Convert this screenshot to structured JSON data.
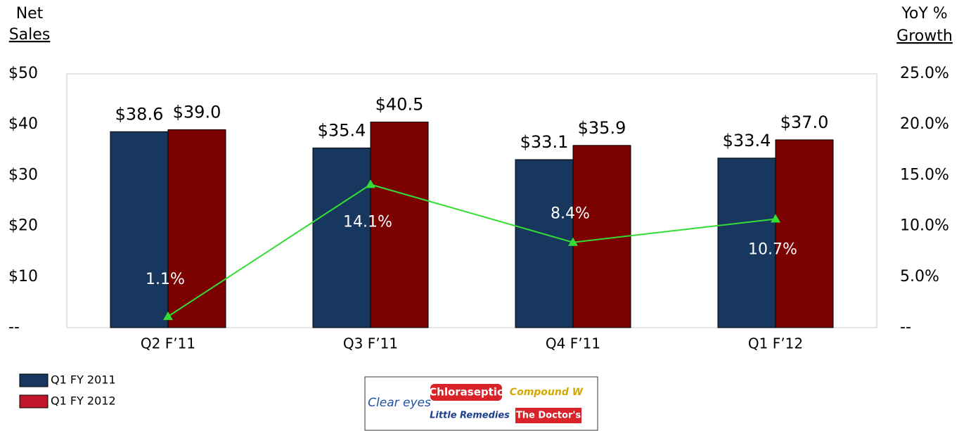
{
  "chart_data": {
    "type": "bar",
    "ylabel": [
      "Net",
      "Sales"
    ],
    "y2label": [
      "YoY  %",
      "Growth"
    ],
    "categories": [
      "Q2 F’11",
      "Q3 F’11",
      "Q4 F’11",
      "Q1 F’12"
    ],
    "series": [
      {
        "name": "Q1 FY 2011",
        "color": "#17375e",
        "values": [
          38.6,
          35.4,
          33.1,
          33.4
        ],
        "value_labels": [
          "$38.6",
          "$35.4",
          "$33.1",
          "$33.4"
        ]
      },
      {
        "name": "Q1 FY 2012",
        "color": "#7b0000",
        "values": [
          39.0,
          40.5,
          35.9,
          37.0
        ],
        "value_labels": [
          "$39.0",
          "$40.5",
          "$35.9",
          "$37.0"
        ]
      },
      {
        "type": "line",
        "axis": "y2",
        "color": "#33dd33",
        "values": [
          1.1,
          14.1,
          8.4,
          10.7
        ],
        "value_labels": [
          "1.1%",
          "14.1%",
          "8.4%",
          "10.7%"
        ]
      }
    ],
    "ylim": [
      0,
      50
    ],
    "yticks": [
      {
        "value": 0,
        "label": "--"
      },
      {
        "value": 10,
        "label": "$10"
      },
      {
        "value": 20,
        "label": "$20"
      },
      {
        "value": 30,
        "label": "$30"
      },
      {
        "value": 40,
        "label": "$40"
      },
      {
        "value": 50,
        "label": "$50"
      }
    ],
    "y2lim": [
      0,
      25
    ],
    "y2ticks": [
      {
        "value": 0,
        "label": "--"
      },
      {
        "value": 5,
        "label": "5.0%"
      },
      {
        "value": 10,
        "label": "10.0%"
      },
      {
        "value": 15,
        "label": "15.0%"
      },
      {
        "value": 20,
        "label": "20.0%"
      },
      {
        "value": 25,
        "label": "25.0%"
      }
    ],
    "legend": "bottom-left",
    "logos": [
      "Clear eyes",
      "Chloraseptic",
      "Compound W",
      "Little Remedies",
      "The Doctor's"
    ]
  }
}
